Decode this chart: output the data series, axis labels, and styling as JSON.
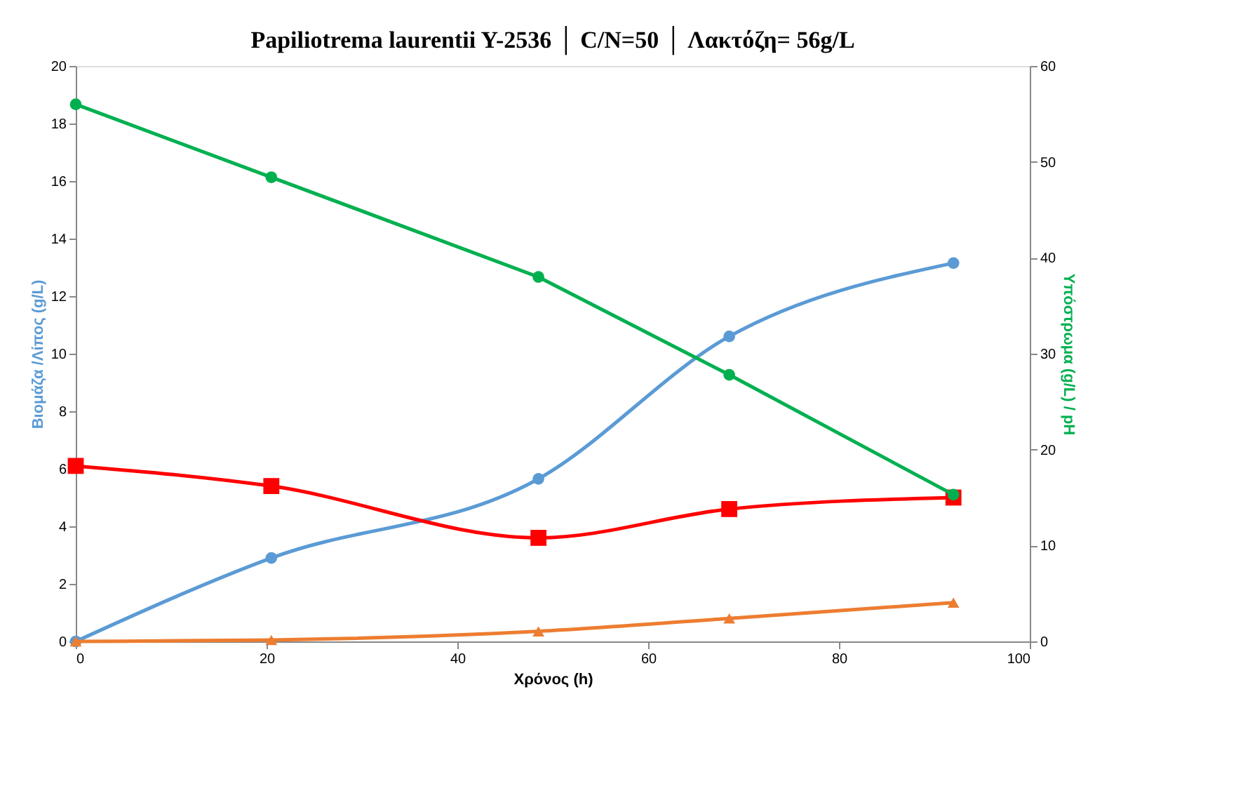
{
  "chart_data": {
    "type": "line",
    "title": "Papiliotrema laurentii Y-2536 │ C/N=50 │ Λακτόζη= 56g/L",
    "xlabel": "Χρόνος (h)",
    "ylabel": "Βιομάζα /Λίπος (g/L)",
    "y2label": "Υπόστρωμα (g/L) / pH",
    "x": [
      0,
      20.5,
      48.5,
      68.5,
      92
    ],
    "series": [
      {
        "color": "#5b9bd5",
        "values": [
          0,
          2.9,
          5.65,
          10.6,
          13.15
        ],
        "marker": "circle",
        "axis": "y"
      },
      {
        "color": "#ed7d31",
        "values": [
          0,
          0.05,
          0.35,
          0.8,
          1.35
        ],
        "marker": "triangle",
        "axis": "y"
      },
      {
        "color": "#ff0000",
        "values": [
          6.1,
          5.4,
          3.6,
          4.6,
          5.0
        ],
        "marker": "square",
        "axis": "y"
      },
      {
        "color": "#00b050",
        "values": [
          56,
          48.4,
          38,
          27.8,
          15.3
        ],
        "marker": "circle",
        "axis": "y2"
      }
    ],
    "xlim": [
      0,
      100
    ],
    "xticks": [
      0,
      20,
      40,
      60,
      80,
      100
    ],
    "ylim": [
      0,
      20
    ],
    "yticks": [
      0,
      2,
      4,
      6,
      8,
      10,
      12,
      14,
      16,
      18,
      20
    ],
    "y2lim": [
      0,
      60
    ],
    "y2ticks": [
      0,
      10,
      20,
      30,
      40,
      50,
      60
    ],
    "grid": false
  }
}
